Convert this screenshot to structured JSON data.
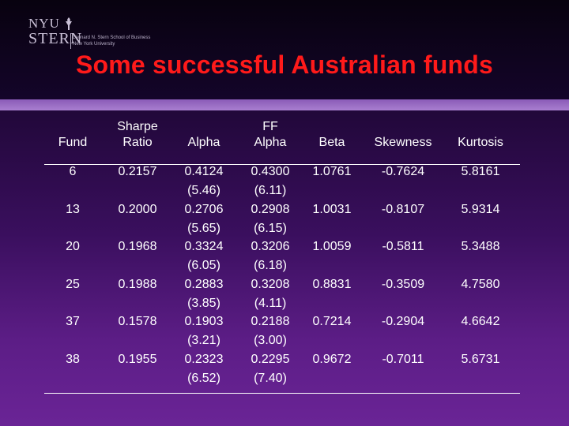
{
  "logo": {
    "nyu": "NYU",
    "stern": "STERN",
    "line1": "Leonard N. Stern School of Business",
    "line2": "New York University"
  },
  "title": "Some successful Australian funds",
  "table": {
    "headers": {
      "fund": [
        "",
        "Fund"
      ],
      "sharpe": [
        "Sharpe",
        "Ratio"
      ],
      "alpha": [
        "",
        "Alpha"
      ],
      "ffalpha": [
        "FF",
        "Alpha"
      ],
      "beta": [
        "",
        "Beta"
      ],
      "skewness": [
        "",
        "Skewness"
      ],
      "kurtosis": [
        "",
        "Kurtosis"
      ]
    },
    "rows": [
      {
        "fund": "6",
        "sharpe": "0.2157",
        "alpha": "0.4124",
        "alpha_t": "(5.46)",
        "ffalpha": "0.4300",
        "ffalpha_t": "(6.11)",
        "beta": "1.0761",
        "skewness": "-0.7624",
        "kurtosis": "5.8161"
      },
      {
        "fund": "13",
        "sharpe": "0.2000",
        "alpha": "0.2706",
        "alpha_t": "(5.65)",
        "ffalpha": "0.2908",
        "ffalpha_t": "(6.15)",
        "beta": "1.0031",
        "skewness": "-0.8107",
        "kurtosis": "5.9314"
      },
      {
        "fund": "20",
        "sharpe": "0.1968",
        "alpha": "0.3324",
        "alpha_t": "(6.05)",
        "ffalpha": "0.3206",
        "ffalpha_t": "(6.18)",
        "beta": "1.0059",
        "skewness": "-0.5811",
        "kurtosis": "5.3488"
      },
      {
        "fund": "25",
        "sharpe": "0.1988",
        "alpha": "0.2883",
        "alpha_t": "(3.85)",
        "ffalpha": "0.3208",
        "ffalpha_t": "(4.11)",
        "beta": "0.8831",
        "skewness": "-0.3509",
        "kurtosis": "4.7580"
      },
      {
        "fund": "37",
        "sharpe": "0.1578",
        "alpha": "0.1903",
        "alpha_t": "(3.21)",
        "ffalpha": "0.2188",
        "ffalpha_t": "(3.00)",
        "beta": "0.7214",
        "skewness": "-0.2904",
        "kurtosis": "4.6642"
      },
      {
        "fund": "38",
        "sharpe": "0.1955",
        "alpha": "0.2323",
        "alpha_t": "(6.52)",
        "ffalpha": "0.2295",
        "ffalpha_t": "(7.40)",
        "beta": "0.9672",
        "skewness": "-0.7011",
        "kurtosis": "5.6731"
      }
    ]
  }
}
